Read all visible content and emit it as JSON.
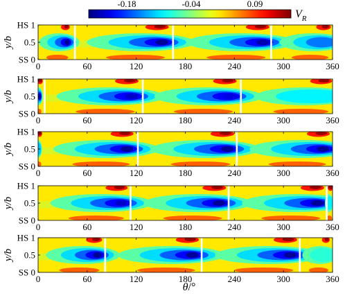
{
  "chart_data": {
    "type": "heatmap",
    "colorbar": {
      "label_main": "V",
      "label_sub": "R",
      "ticks": [
        "-0.18",
        "-0.04",
        "0.09"
      ],
      "tick_values": [
        -0.18,
        -0.04,
        0.09
      ],
      "range": [
        -0.25,
        0.16
      ],
      "colormap": "jet"
    },
    "x_axis": {
      "label_main": "θ",
      "label_rest": "/°",
      "range": [
        0,
        360
      ],
      "ticks": [
        0,
        60,
        120,
        180,
        240,
        300,
        360
      ],
      "tick_labels": [
        "0",
        "60",
        "120",
        "180",
        "240",
        "300",
        "360"
      ]
    },
    "y_axis": {
      "label": "y/b",
      "range": [
        0,
        1
      ],
      "ticks": [
        0,
        0.5,
        1
      ],
      "tick_labels": [
        "SS 0",
        "0.5",
        "HS 1"
      ]
    },
    "panels": [
      {
        "passages": [
          {
            "from": 0,
            "to": 45,
            "core_theta": 37,
            "core_value": -0.24
          },
          {
            "from": 45,
            "to": 165,
            "core_theta": 155,
            "core_value": -0.24
          },
          {
            "from": 165,
            "to": 285,
            "core_theta": 278,
            "core_value": -0.23
          },
          {
            "from": 285,
            "to": 360,
            "core_theta": 355,
            "core_value": -0.15
          }
        ],
        "wake_lines": [
          45,
          165,
          285
        ]
      },
      {
        "passages": [
          {
            "from": 0,
            "to": 8,
            "core_theta": 3,
            "core_value": -0.22
          },
          {
            "from": 8,
            "to": 128,
            "core_theta": 118,
            "core_value": -0.22
          },
          {
            "from": 128,
            "to": 248,
            "core_theta": 238,
            "core_value": -0.21
          },
          {
            "from": 248,
            "to": 360,
            "core_theta": 355,
            "core_value": -0.1
          }
        ],
        "wake_lines": [
          8,
          128,
          248
        ]
      },
      {
        "passages": [
          {
            "from": 0,
            "to": 5,
            "core_theta": 2,
            "core_value": -0.12
          },
          {
            "from": 5,
            "to": 122,
            "core_theta": 112,
            "core_value": -0.24
          },
          {
            "from": 122,
            "to": 243,
            "core_theta": 235,
            "core_value": -0.24
          },
          {
            "from": 243,
            "to": 360,
            "core_theta": 352,
            "core_value": -0.24
          }
        ],
        "wake_lines": [
          122,
          243
        ]
      },
      {
        "passages": [
          {
            "from": 0,
            "to": 113,
            "core_theta": 105,
            "core_value": -0.22
          },
          {
            "from": 113,
            "to": 233,
            "core_theta": 225,
            "core_value": -0.24
          },
          {
            "from": 233,
            "to": 353,
            "core_theta": 345,
            "core_value": -0.24
          },
          {
            "from": 353,
            "to": 360,
            "core_theta": 358,
            "core_value": -0.1
          }
        ],
        "wake_lines": [
          113,
          233,
          353
        ]
      },
      {
        "passages": [
          {
            "from": 0,
            "to": 82,
            "core_theta": 75,
            "core_value": -0.24
          },
          {
            "from": 82,
            "to": 200,
            "core_theta": 192,
            "core_value": -0.24
          },
          {
            "from": 200,
            "to": 320,
            "core_theta": 312,
            "core_value": -0.24
          },
          {
            "from": 320,
            "to": 360,
            "core_theta": 355,
            "core_value": -0.08
          }
        ],
        "wake_lines": [
          82,
          200,
          320
        ]
      }
    ]
  }
}
